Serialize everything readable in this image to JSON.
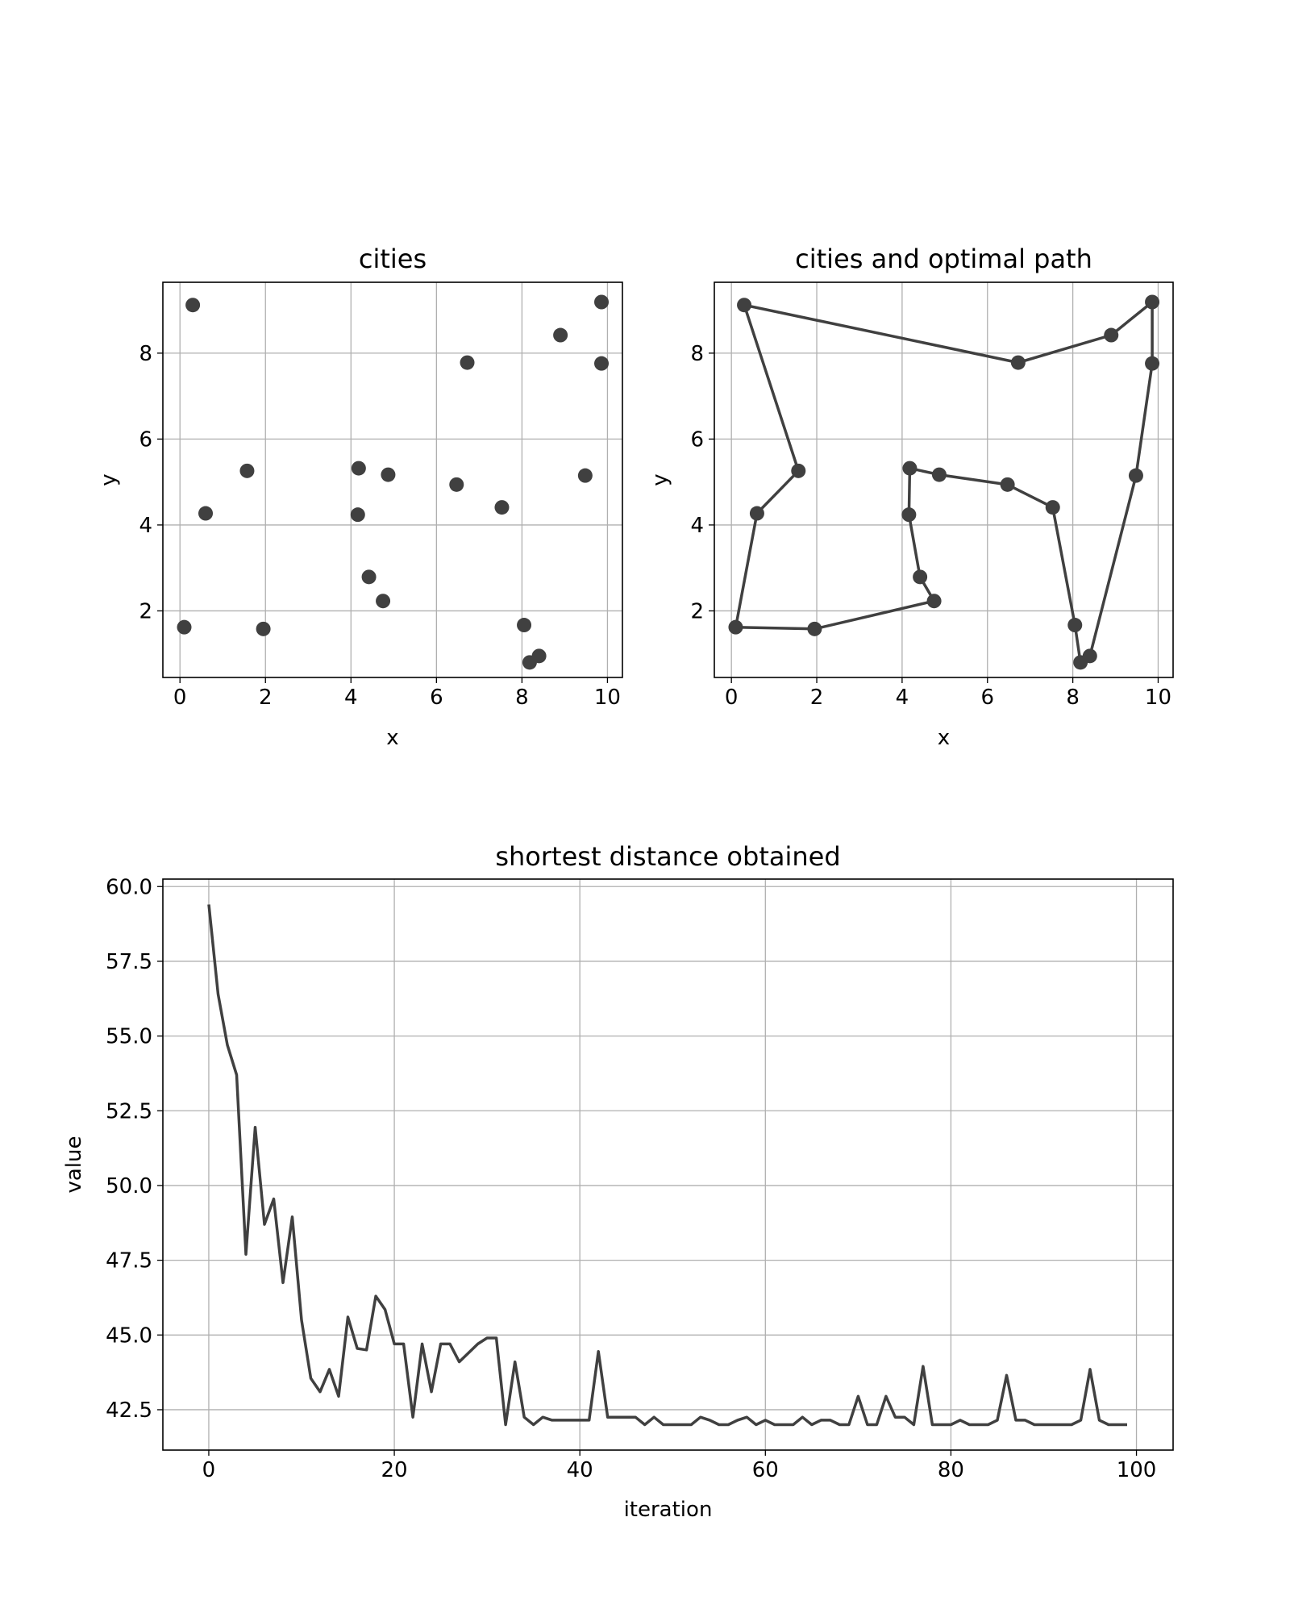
{
  "chart_data": [
    {
      "type": "scatter",
      "title": "cities",
      "xlabel": "x",
      "ylabel": "y",
      "xlim": [
        -0.4,
        10.35
      ],
      "ylim": [
        0.45,
        9.65
      ],
      "xticks": [
        0,
        2,
        4,
        6,
        8,
        10
      ],
      "yticks": [
        2,
        4,
        6,
        8
      ],
      "grid": true,
      "color": "#404040",
      "points": [
        {
          "x": 0.3,
          "y": 9.12
        },
        {
          "x": 6.72,
          "y": 7.78
        },
        {
          "x": 8.9,
          "y": 8.42
        },
        {
          "x": 9.86,
          "y": 9.19
        },
        {
          "x": 9.86,
          "y": 7.76
        },
        {
          "x": 9.48,
          "y": 5.15
        },
        {
          "x": 8.4,
          "y": 0.95
        },
        {
          "x": 8.18,
          "y": 0.8
        },
        {
          "x": 8.05,
          "y": 1.67
        },
        {
          "x": 7.53,
          "y": 4.41
        },
        {
          "x": 6.47,
          "y": 4.94
        },
        {
          "x": 4.87,
          "y": 5.17
        },
        {
          "x": 4.18,
          "y": 5.32
        },
        {
          "x": 4.16,
          "y": 4.24
        },
        {
          "x": 4.42,
          "y": 2.79
        },
        {
          "x": 4.75,
          "y": 2.23
        },
        {
          "x": 1.95,
          "y": 1.58
        },
        {
          "x": 0.1,
          "y": 1.62
        },
        {
          "x": 0.6,
          "y": 4.27
        },
        {
          "x": 1.57,
          "y": 5.26
        }
      ]
    },
    {
      "type": "line",
      "title": "cities and optimal path",
      "xlabel": "x",
      "ylabel": "y",
      "xlim": [
        -0.4,
        10.35
      ],
      "ylim": [
        0.45,
        9.65
      ],
      "xticks": [
        0,
        2,
        4,
        6,
        8,
        10
      ],
      "yticks": [
        2,
        4,
        6,
        8
      ],
      "grid": true,
      "color": "#404040",
      "closed": true,
      "path": [
        {
          "x": 0.3,
          "y": 9.12
        },
        {
          "x": 6.72,
          "y": 7.78
        },
        {
          "x": 8.9,
          "y": 8.42
        },
        {
          "x": 9.86,
          "y": 9.19
        },
        {
          "x": 9.86,
          "y": 7.76
        },
        {
          "x": 9.48,
          "y": 5.15
        },
        {
          "x": 8.4,
          "y": 0.95
        },
        {
          "x": 8.18,
          "y": 0.8
        },
        {
          "x": 8.05,
          "y": 1.67
        },
        {
          "x": 7.53,
          "y": 4.41
        },
        {
          "x": 6.47,
          "y": 4.94
        },
        {
          "x": 4.87,
          "y": 5.17
        },
        {
          "x": 4.18,
          "y": 5.32
        },
        {
          "x": 4.16,
          "y": 4.24
        },
        {
          "x": 4.42,
          "y": 2.79
        },
        {
          "x": 4.75,
          "y": 2.23
        },
        {
          "x": 1.95,
          "y": 1.58
        },
        {
          "x": 0.1,
          "y": 1.62
        },
        {
          "x": 0.6,
          "y": 4.27
        },
        {
          "x": 1.57,
          "y": 5.26
        }
      ]
    },
    {
      "type": "line",
      "title": "shortest distance obtained",
      "xlabel": "iteration",
      "ylabel": "value",
      "xlim": [
        -4.95,
        103.95
      ],
      "ylim": [
        41.15,
        60.25
      ],
      "xticks": [
        0,
        20,
        40,
        60,
        80,
        100
      ],
      "yticks": [
        42.5,
        45.0,
        47.5,
        50.0,
        52.5,
        55.0,
        57.5,
        60.0
      ],
      "ytick_labels": [
        "42.5",
        "45.0",
        "47.5",
        "50.0",
        "52.5",
        "55.0",
        "57.5",
        "60.0"
      ],
      "grid": true,
      "color": "#404040",
      "series": [
        {
          "values": [
            59.4,
            56.4,
            54.7,
            53.7,
            47.7,
            51.95,
            48.7,
            49.55,
            46.75,
            48.95,
            45.5,
            43.55,
            43.1,
            43.85,
            42.95,
            45.6,
            44.55,
            44.5,
            46.3,
            45.85,
            44.7,
            44.7,
            42.25,
            44.7,
            43.1,
            44.7,
            44.7,
            44.1,
            44.4,
            44.7,
            44.9,
            44.9,
            42.0,
            44.1,
            42.25,
            42.0,
            42.25,
            42.15,
            42.15,
            42.15,
            42.15,
            42.15,
            44.45,
            42.25,
            42.25,
            42.25,
            42.25,
            42.0,
            42.25,
            42.0,
            42.0,
            42.0,
            42.0,
            42.25,
            42.15,
            42.0,
            42.0,
            42.15,
            42.25,
            42.0,
            42.15,
            42.0,
            42.0,
            42.0,
            42.25,
            42.0,
            42.15,
            42.15,
            42.0,
            42.0,
            42.95,
            42.0,
            42.0,
            42.95,
            42.25,
            42.25,
            42.0,
            43.95,
            42.0,
            42.0,
            42.0,
            42.15,
            42.0,
            42.0,
            42.0,
            42.15,
            43.65,
            42.15,
            42.15,
            42.0,
            42.0,
            42.0,
            42.0,
            42.0,
            42.15,
            43.85,
            42.15,
            42.0,
            42.0,
            42.0
          ]
        }
      ]
    }
  ]
}
